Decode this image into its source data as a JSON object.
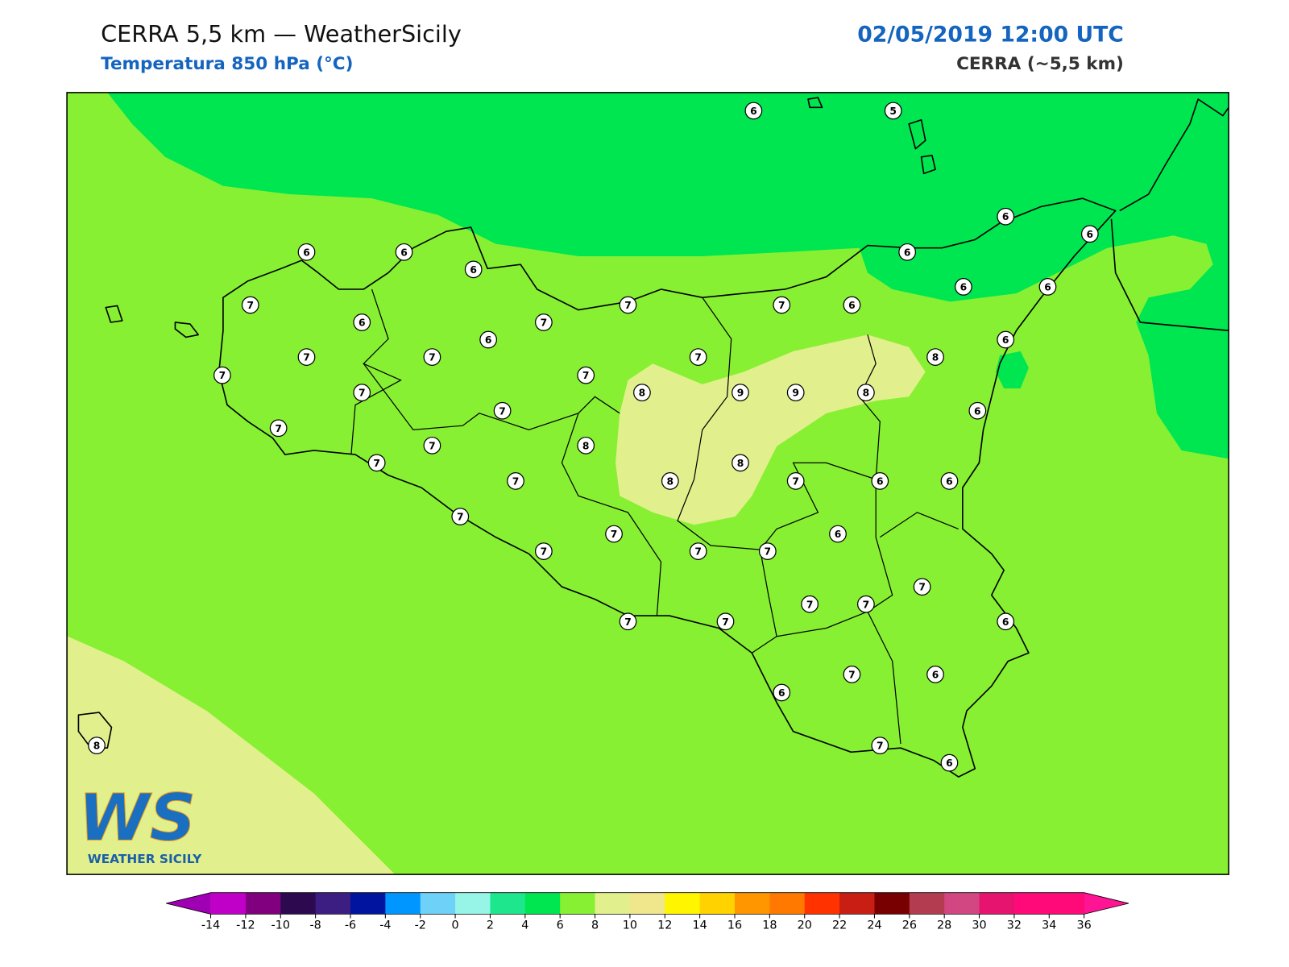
{
  "header": {
    "title": "CERRA 5,5 km — WeatherSicily",
    "subtitle": "Temperatura 850 hPa (°C)",
    "datetime": "02/05/2019 12:00 UTC",
    "model": "CERRA (~5,5 km)"
  },
  "stations": [
    6,
    5,
    6,
    6,
    6,
    6,
    6,
    6,
    7,
    6,
    7,
    7,
    7,
    6,
    6,
    6,
    6,
    7,
    7,
    7,
    6,
    8,
    7,
    7,
    8,
    9,
    9,
    8,
    7,
    7,
    6,
    7,
    7,
    8,
    7,
    8,
    7,
    8,
    7,
    6,
    6,
    7,
    7,
    6,
    7,
    7,
    7,
    7,
    7,
    7,
    7,
    7,
    6,
    6,
    7,
    6,
    7,
    6,
    8
  ],
  "colorbar": {
    "ticks": [
      -14,
      -12,
      -10,
      -8,
      -6,
      -4,
      -2,
      0,
      2,
      4,
      6,
      8,
      10,
      12,
      14,
      16,
      18,
      20,
      22,
      24,
      26,
      28,
      30,
      32,
      34,
      36
    ],
    "colors": [
      "#c000c8",
      "#800080",
      "#2d0a50",
      "#3c1e82",
      "#0014a0",
      "#0096ff",
      "#6ed2f8",
      "#96f5e6",
      "#1ee68c",
      "#00e650",
      "#87f032",
      "#e1f08c",
      "#f0e68c",
      "#fff500",
      "#ffd200",
      "#ff9600",
      "#ff7800",
      "#ff3200",
      "#c81e14",
      "#780000",
      "#b43c50",
      "#d24682",
      "#e6146e",
      "#ff0a78",
      "#ff0a78"
    ],
    "under_color": "#a000b4",
    "over_color": "#ff1493"
  },
  "logo": {
    "mark": "WS",
    "name": "WEATHER SICILY"
  }
}
